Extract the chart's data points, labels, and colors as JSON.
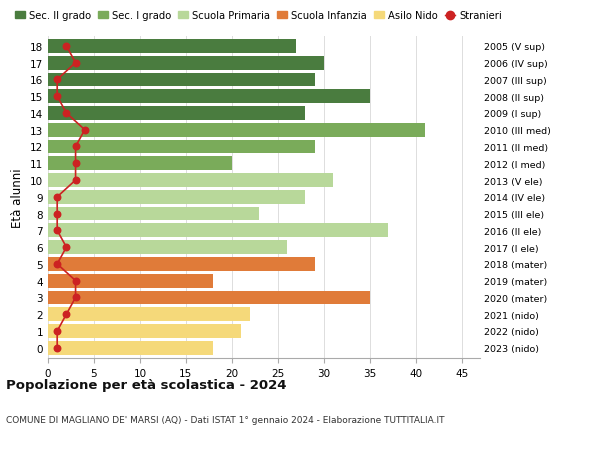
{
  "ages": [
    18,
    17,
    16,
    15,
    14,
    13,
    12,
    11,
    10,
    9,
    8,
    7,
    6,
    5,
    4,
    3,
    2,
    1,
    0
  ],
  "right_labels": [
    "2005 (V sup)",
    "2006 (IV sup)",
    "2007 (III sup)",
    "2008 (II sup)",
    "2009 (I sup)",
    "2010 (III med)",
    "2011 (II med)",
    "2012 (I med)",
    "2013 (V ele)",
    "2014 (IV ele)",
    "2015 (III ele)",
    "2016 (II ele)",
    "2017 (I ele)",
    "2018 (mater)",
    "2019 (mater)",
    "2020 (mater)",
    "2021 (nido)",
    "2022 (nido)",
    "2023 (nido)"
  ],
  "bar_values": [
    27,
    30,
    29,
    35,
    28,
    41,
    29,
    20,
    31,
    28,
    23,
    37,
    26,
    29,
    18,
    35,
    22,
    21,
    18
  ],
  "bar_colors": [
    "#4a7c3f",
    "#4a7c3f",
    "#4a7c3f",
    "#4a7c3f",
    "#4a7c3f",
    "#7aab5a",
    "#7aab5a",
    "#7aab5a",
    "#b8d89a",
    "#b8d89a",
    "#b8d89a",
    "#b8d89a",
    "#b8d89a",
    "#e07b39",
    "#e07b39",
    "#e07b39",
    "#f5d97a",
    "#f5d97a",
    "#f5d97a"
  ],
  "stranieri_values": [
    2,
    3,
    1,
    1,
    2,
    4,
    3,
    3,
    3,
    1,
    1,
    1,
    2,
    1,
    3,
    3,
    2,
    1,
    1
  ],
  "stranieri_color": "#cc2222",
  "title": "Popolazione per età scolastica - 2024",
  "subtitle": "COMUNE DI MAGLIANO DE' MARSI (AQ) - Dati ISTAT 1° gennaio 2024 - Elaborazione TUTTITALIA.IT",
  "ylabel": "Età alunni",
  "xlim": [
    0,
    47
  ],
  "xticks": [
    0,
    5,
    10,
    15,
    20,
    25,
    30,
    35,
    40,
    45
  ],
  "legend_labels": [
    "Sec. II grado",
    "Sec. I grado",
    "Scuola Primaria",
    "Scuola Infanzia",
    "Asilo Nido",
    "Stranieri"
  ],
  "legend_colors": [
    "#4a7c3f",
    "#7aab5a",
    "#b8d89a",
    "#e07b39",
    "#f5d97a",
    "#cc2222"
  ],
  "bg_color": "#ffffff",
  "grid_color": "#dddddd"
}
